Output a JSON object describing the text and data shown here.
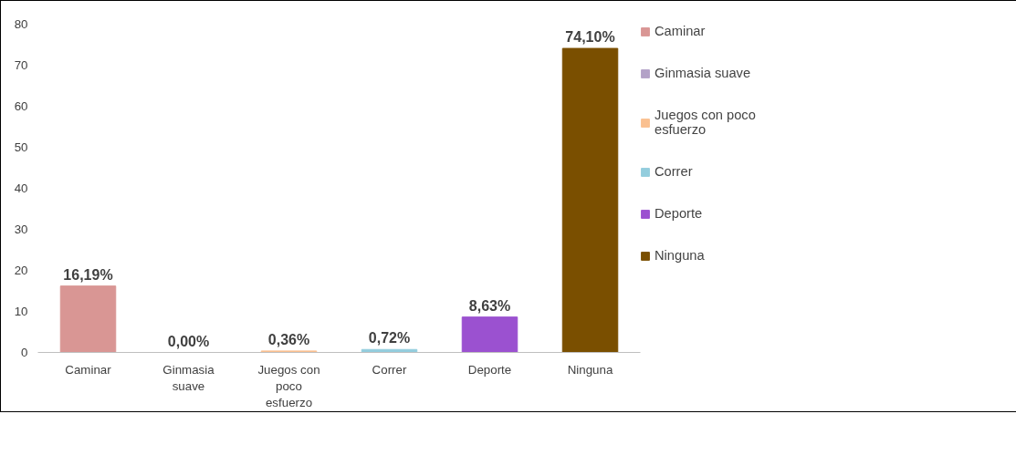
{
  "chart_data": {
    "type": "bar",
    "categories": [
      "Caminar",
      "Ginmasia suave",
      "Juegos con poco esfuerzo",
      "Correr",
      "Deporte",
      "Ninguna"
    ],
    "series": [
      {
        "name": "Caminar",
        "color": "#d99694",
        "values": [
          16.19,
          null,
          null,
          null,
          null,
          null
        ],
        "value_labels": [
          "16,19%",
          null,
          null,
          null,
          null,
          null
        ]
      },
      {
        "name": "Ginmasia suave",
        "color": "#b3a2c7",
        "values": [
          null,
          0.0,
          null,
          null,
          null,
          null
        ],
        "value_labels": [
          null,
          "0,00%",
          null,
          null,
          null,
          null
        ]
      },
      {
        "name": "Juegos con poco esfuerzo",
        "color": "#fac090",
        "values": [
          null,
          null,
          0.36,
          null,
          null,
          null
        ],
        "value_labels": [
          null,
          null,
          "0,36%",
          null,
          null,
          null
        ]
      },
      {
        "name": "Correr",
        "color": "#93cddd",
        "values": [
          null,
          null,
          null,
          0.72,
          null,
          null
        ],
        "value_labels": [
          null,
          null,
          null,
          "0,72%",
          null,
          null
        ]
      },
      {
        "name": "Deporte",
        "color": "#9b51d0",
        "values": [
          null,
          null,
          null,
          null,
          8.63,
          null
        ],
        "value_labels": [
          null,
          null,
          null,
          null,
          "8,63%",
          null
        ]
      },
      {
        "name": "Ninguna",
        "color": "#7a4f00",
        "values": [
          null,
          null,
          null,
          null,
          null,
          74.1
        ],
        "value_labels": [
          null,
          null,
          null,
          null,
          null,
          "74,10%"
        ]
      }
    ],
    "ylim": [
      0,
      80
    ],
    "yticks": [
      0,
      10,
      20,
      30,
      40,
      50,
      60,
      70,
      80
    ],
    "grid": false,
    "legend": "right"
  }
}
